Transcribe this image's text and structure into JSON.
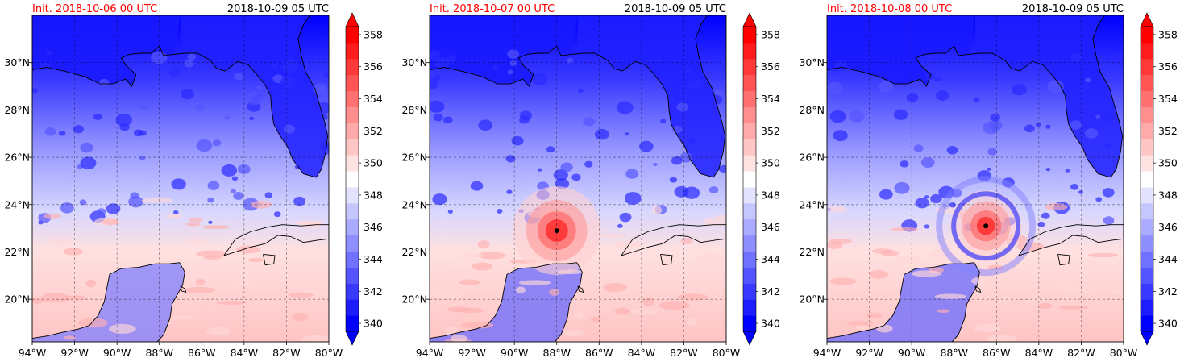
{
  "chart_data": [
    {
      "type": "heatmap",
      "title_left": "Init. 2018-10-06 00 UTC",
      "title_right": "2018-10-09 05 UTC",
      "xlim": [
        -94,
        -80
      ],
      "ylim": [
        18.2,
        32
      ],
      "xticks": [
        -94,
        -92,
        -90,
        -88,
        -86,
        -84,
        -82,
        -80
      ],
      "xtick_labels": [
        "94°W",
        "92°W",
        "90°W",
        "88°W",
        "86°W",
        "84°W",
        "82°W",
        "80°W"
      ],
      "yticks": [
        20,
        22,
        24,
        26,
        28,
        30
      ],
      "ytick_labels": [
        "20°N",
        "22°N",
        "24°N",
        "26°N",
        "28°N",
        "30°N"
      ],
      "grid": true,
      "colorbar": {
        "min": 340,
        "max": 359,
        "ticks": [
          340,
          342,
          344,
          346,
          348,
          350,
          352,
          354,
          356,
          358
        ],
        "tick_labels": [
          "340",
          "342",
          "344",
          "346",
          "348",
          "350",
          "352",
          "354",
          "356",
          "358"
        ],
        "extend": "both"
      },
      "storm_center": null
    },
    {
      "type": "heatmap",
      "title_left": "Init. 2018-10-07 00 UTC",
      "title_right": "2018-10-09 05 UTC",
      "xlim": [
        -94,
        -80
      ],
      "ylim": [
        18.2,
        32
      ],
      "xticks": [
        -94,
        -92,
        -90,
        -88,
        -86,
        -84,
        -82,
        -80
      ],
      "xtick_labels": [
        "94°W",
        "92°W",
        "90°W",
        "88°W",
        "86°W",
        "84°W",
        "82°W",
        "80°W"
      ],
      "yticks": [
        20,
        22,
        24,
        26,
        28,
        30
      ],
      "ytick_labels": [
        "20°N",
        "22°N",
        "24°N",
        "26°N",
        "28°N",
        "30°N"
      ],
      "grid": true,
      "colorbar": {
        "min": 340,
        "max": 359,
        "ticks": [
          340,
          342,
          344,
          346,
          348,
          350,
          352,
          354,
          356,
          358
        ],
        "tick_labels": [
          "340",
          "342",
          "344",
          "346",
          "348",
          "350",
          "352",
          "354",
          "356",
          "358"
        ],
        "extend": "both"
      },
      "storm_center": {
        "lon": -88.0,
        "lat": 22.9
      }
    },
    {
      "type": "heatmap",
      "title_left": "Init. 2018-10-08 00 UTC",
      "title_right": "2018-10-09 05 UTC",
      "xlim": [
        -94,
        -80
      ],
      "ylim": [
        18.2,
        32
      ],
      "xticks": [
        -94,
        -92,
        -90,
        -88,
        -86,
        -84,
        -82,
        -80
      ],
      "xtick_labels": [
        "94°W",
        "92°W",
        "90°W",
        "88°W",
        "86°W",
        "84°W",
        "82°W",
        "80°W"
      ],
      "yticks": [
        20,
        22,
        24,
        26,
        28,
        30
      ],
      "ytick_labels": [
        "20°N",
        "22°N",
        "24°N",
        "26°N",
        "28°N",
        "30°N"
      ],
      "grid": true,
      "colorbar": {
        "min": 340,
        "max": 359,
        "ticks": [
          340,
          342,
          344,
          346,
          348,
          350,
          352,
          354,
          356,
          358
        ],
        "tick_labels": [
          "340",
          "342",
          "344",
          "346",
          "348",
          "350",
          "352",
          "354",
          "356",
          "358"
        ],
        "extend": "both"
      },
      "storm_center": {
        "lon": -86.5,
        "lat": 23.1
      }
    }
  ],
  "colors": {
    "title_init": "#ff0000",
    "title_valid": "#000000",
    "cold": "#0000ff",
    "neutral": "#ffffff",
    "warm": "#ff0000"
  }
}
